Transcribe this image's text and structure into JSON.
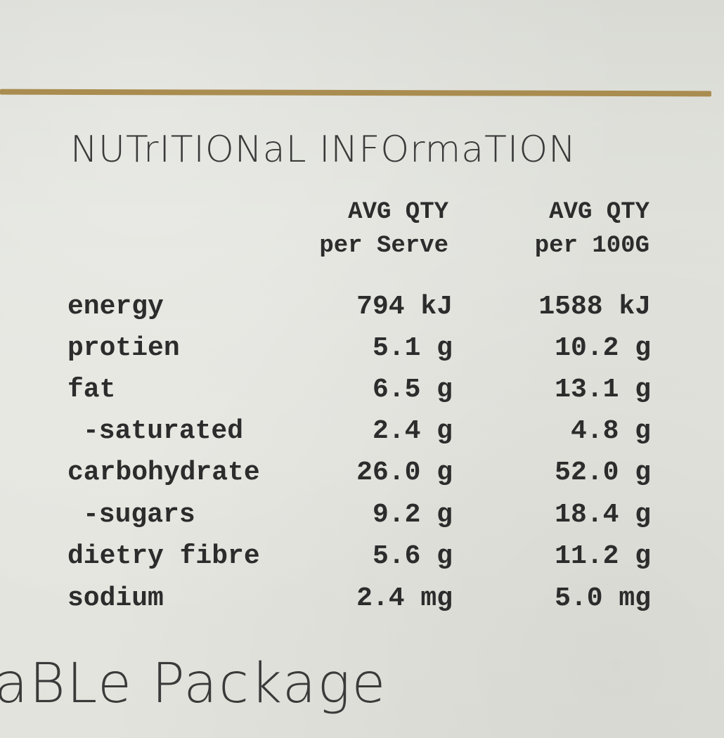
{
  "title": "NUTrITIONaL INFOrmaTION",
  "columns": {
    "serve_line1": "AVG QTY",
    "serve_line2": "per Serve",
    "g100_line1": "AVG QTY",
    "g100_line2": "per 100G"
  },
  "rows": [
    {
      "label": "energy",
      "per_serve": "794 kJ",
      "per_100g": "1588 kJ"
    },
    {
      "label": "protien",
      "per_serve": "5.1 g",
      "per_100g": "10.2 g"
    },
    {
      "label": "fat",
      "per_serve": "6.5 g",
      "per_100g": "13.1 g"
    },
    {
      "label": "-saturated",
      "per_serve": "2.4 g",
      "per_100g": "4.8 g"
    },
    {
      "label": "carbohydrate",
      "per_serve": "26.0 g",
      "per_100g": "52.0 g"
    },
    {
      "label": "-sugars",
      "per_serve": "9.2 g",
      "per_100g": "18.4 g"
    },
    {
      "label": "dietry fibre",
      "per_serve": "5.6 g",
      "per_100g": "11.2 g"
    },
    {
      "label": "sodium",
      "per_serve": "2.4 mg",
      "per_100g": "5.0 mg"
    }
  ],
  "footer": "aBLe Package",
  "colors": {
    "rule": "#a98c4f",
    "paper": "#e3e3dd",
    "ink": "#2c2c2c"
  }
}
